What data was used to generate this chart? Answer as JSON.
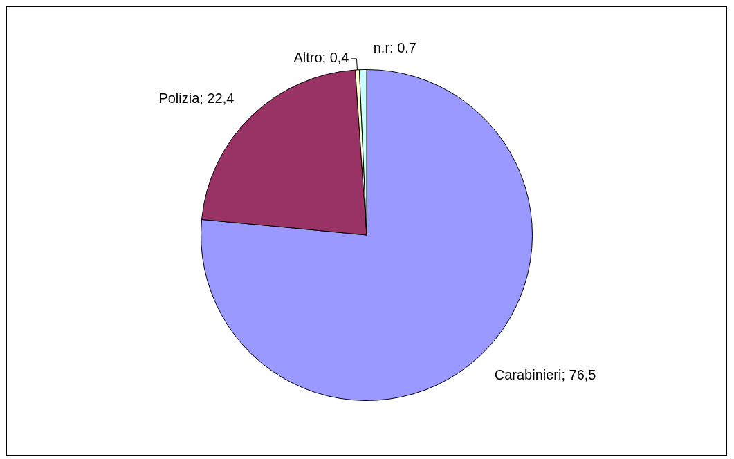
{
  "chart_data": {
    "type": "pie",
    "categories": [
      "Carabinieri",
      "Polizia",
      "Altro",
      "n.r"
    ],
    "values": [
      76.5,
      22.4,
      0.4,
      0.7
    ],
    "colors": [
      "#9999ff",
      "#993366",
      "#ffffcc",
      "#ccffff"
    ],
    "value_labels": [
      "; 76,5",
      "; 22,4",
      "; 0,4",
      ": 0.7"
    ],
    "legend": false
  }
}
